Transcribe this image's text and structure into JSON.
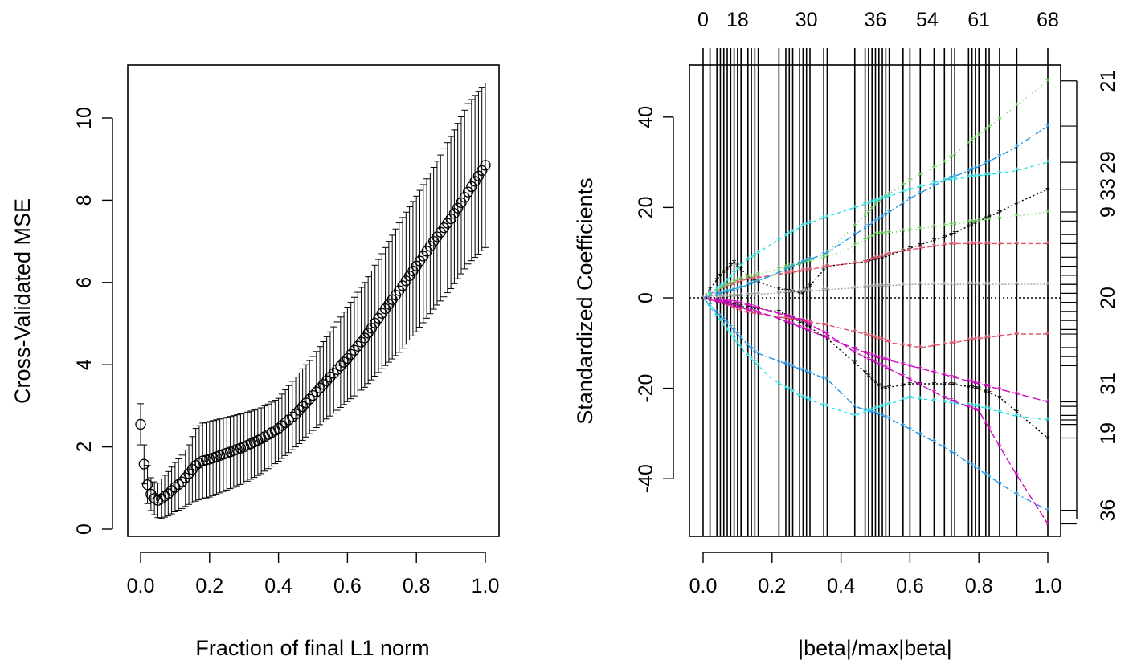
{
  "chart_data": [
    {
      "type": "line",
      "xlabel": "Fraction of final L1 norm",
      "ylabel": "Cross-Validated MSE",
      "xlim": [
        0,
        1
      ],
      "ylim": [
        0,
        11
      ],
      "xticks": [
        "0.0",
        "0.2",
        "0.4",
        "0.6",
        "0.8",
        "1.0"
      ],
      "yticks": [
        "0",
        "2",
        "4",
        "6",
        "8",
        "10"
      ],
      "marker": "open-circle",
      "error_bars": true,
      "series": [
        {
          "x": [
            0.0,
            0.01,
            0.02,
            0.03,
            0.04,
            0.05,
            0.06,
            0.08,
            0.1,
            0.12,
            0.14,
            0.16,
            0.18,
            0.2,
            0.25,
            0.3,
            0.35,
            0.4,
            0.45,
            0.5,
            0.55,
            0.6,
            0.65,
            0.7,
            0.75,
            0.8,
            0.85,
            0.9,
            0.95,
            1.0
          ],
          "y": [
            2.55,
            1.58,
            1.08,
            0.85,
            0.75,
            0.7,
            0.74,
            0.86,
            1.02,
            1.15,
            1.35,
            1.55,
            1.66,
            1.7,
            1.85,
            2.0,
            2.2,
            2.45,
            2.8,
            3.25,
            3.7,
            4.15,
            4.65,
            5.25,
            5.8,
            6.4,
            7.0,
            7.55,
            8.2,
            8.85
          ],
          "upper": [
            3.05,
            2.05,
            1.55,
            1.25,
            1.15,
            1.12,
            1.22,
            1.4,
            1.62,
            1.8,
            2.05,
            2.45,
            2.58,
            2.62,
            2.72,
            2.82,
            2.95,
            3.18,
            3.7,
            4.2,
            4.8,
            5.4,
            6.0,
            6.7,
            7.45,
            8.1,
            8.8,
            9.55,
            10.35,
            10.85
          ],
          "lower": [
            2.05,
            1.1,
            0.62,
            0.45,
            0.35,
            0.28,
            0.26,
            0.32,
            0.42,
            0.5,
            0.6,
            0.68,
            0.74,
            0.78,
            0.95,
            1.12,
            1.35,
            1.65,
            2.0,
            2.4,
            2.75,
            3.1,
            3.45,
            3.9,
            4.3,
            4.8,
            5.35,
            5.85,
            6.45,
            6.85
          ]
        }
      ]
    },
    {
      "type": "line",
      "xlabel": "|beta|/max|beta|",
      "ylabel": "Standardized Coefficients",
      "xlim": [
        0,
        1
      ],
      "ylim": [
        -52,
        52
      ],
      "xticks": [
        "0.0",
        "0.2",
        "0.4",
        "0.6",
        "0.8",
        "1.0"
      ],
      "yticks": [
        "-40",
        "-20",
        "0",
        "20",
        "40"
      ],
      "top_axis": {
        "values": [
          0,
          0.1,
          0.3,
          0.5,
          0.65,
          0.8,
          1.0
        ],
        "labels": [
          "0",
          "18",
          "30",
          "36",
          "54",
          "61",
          "68"
        ]
      },
      "right_axis": {
        "values": [
          48,
          38,
          30,
          24,
          19,
          8,
          0,
          -9,
          -19,
          -30,
          -47
        ],
        "labels": [
          "21",
          "",
          "29",
          "33",
          "9",
          "",
          "20",
          "",
          "31",
          "19",
          "36"
        ],
        "shown_labels": [
          "21",
          "29",
          "33",
          "9",
          "20",
          "31",
          "19",
          "36"
        ]
      },
      "step_lines_x": [
        0.0,
        0.02,
        0.04,
        0.05,
        0.06,
        0.07,
        0.08,
        0.09,
        0.1,
        0.11,
        0.13,
        0.14,
        0.15,
        0.16,
        0.22,
        0.24,
        0.25,
        0.26,
        0.28,
        0.29,
        0.3,
        0.31,
        0.35,
        0.36,
        0.44,
        0.47,
        0.48,
        0.49,
        0.5,
        0.51,
        0.52,
        0.53,
        0.54,
        0.58,
        0.6,
        0.63,
        0.67,
        0.7,
        0.72,
        0.73,
        0.77,
        0.78,
        0.79,
        0.8,
        0.82,
        0.83,
        0.86,
        0.91,
        1.0
      ],
      "zero_line": true,
      "series": [
        {
          "name": "",
          "color": "#000000",
          "x": [
            0,
            0.05,
            0.09,
            0.14,
            0.22,
            0.29,
            0.36,
            0.47,
            0.52,
            0.6,
            0.72,
            0.8,
            0.86,
            0.91,
            1.0
          ],
          "y": [
            0,
            5,
            8,
            4,
            2,
            1,
            7,
            8,
            9,
            11,
            14,
            17,
            19,
            21,
            24
          ]
        },
        {
          "name": "",
          "color": "#000000",
          "x": [
            0,
            0.05,
            0.12,
            0.22,
            0.3,
            0.36,
            0.45,
            0.52,
            0.6,
            0.72,
            0.8,
            0.86,
            1.0
          ],
          "y": [
            0,
            -1,
            -2,
            -3,
            -6,
            -9,
            -15,
            -20,
            -19,
            -19,
            -20,
            -22,
            -31
          ]
        },
        {
          "name": "",
          "color": "#df536b",
          "x": [
            0,
            0.05,
            0.12,
            0.2,
            0.29,
            0.36,
            0.47,
            0.55,
            0.63,
            0.72,
            0.8,
            0.9,
            1.0
          ],
          "y": [
            0,
            2,
            4,
            5,
            6,
            7,
            8,
            10,
            11,
            12,
            12,
            12,
            12
          ]
        },
        {
          "name": "",
          "color": "#df536b",
          "x": [
            0,
            0.05,
            0.12,
            0.2,
            0.29,
            0.36,
            0.47,
            0.55,
            0.63,
            0.72,
            0.8,
            0.9,
            1.0
          ],
          "y": [
            0,
            -1,
            -3,
            -4,
            -5,
            -6,
            -8,
            -10,
            -11,
            -10,
            -9,
            -8,
            -8
          ]
        },
        {
          "name": "",
          "color": "#61d04f",
          "x": [
            0,
            0.1,
            0.2,
            0.3,
            0.36,
            0.44,
            0.52,
            0.6,
            0.7,
            0.8,
            0.9,
            1.0
          ],
          "y": [
            0,
            4,
            6,
            8,
            10,
            16,
            22,
            26,
            30,
            36,
            42,
            48
          ]
        },
        {
          "name": "",
          "color": "#61d04f",
          "x": [
            0,
            0.1,
            0.2,
            0.3,
            0.4,
            0.5,
            0.6,
            0.7,
            0.8,
            0.9,
            1.0
          ],
          "y": [
            0,
            2,
            5,
            8,
            10,
            14,
            15,
            16,
            17,
            18,
            19
          ]
        },
        {
          "name": "",
          "color": "#2297e6",
          "x": [
            0,
            0.05,
            0.1,
            0.15,
            0.22,
            0.29,
            0.36,
            0.44,
            0.52,
            0.6,
            0.7,
            0.8,
            0.9,
            1.0
          ],
          "y": [
            0,
            -4,
            -8,
            -12,
            -14,
            -16,
            -18,
            -24,
            -26,
            -29,
            -33,
            -38,
            -43,
            -47
          ]
        },
        {
          "name": "",
          "color": "#2297e6",
          "x": [
            0,
            0.1,
            0.2,
            0.29,
            0.36,
            0.44,
            0.52,
            0.6,
            0.7,
            0.8,
            0.9,
            1.0
          ],
          "y": [
            0,
            2,
            5,
            8,
            10,
            14,
            18,
            22,
            26,
            29,
            33,
            38
          ]
        },
        {
          "name": "",
          "color": "#28e2e5",
          "x": [
            0,
            0.06,
            0.12,
            0.2,
            0.29,
            0.36,
            0.44,
            0.52,
            0.6,
            0.7,
            0.8,
            0.9,
            1.0
          ],
          "y": [
            0,
            -6,
            -12,
            -18,
            -22,
            -24,
            -26,
            -24,
            -22,
            -23,
            -24,
            -26,
            -27
          ]
        },
        {
          "name": "",
          "color": "#28e2e5",
          "x": [
            0,
            0.06,
            0.12,
            0.2,
            0.29,
            0.36,
            0.44,
            0.52,
            0.6,
            0.7,
            0.8,
            0.9,
            1.0
          ],
          "y": [
            0,
            3,
            8,
            12,
            16,
            18,
            20,
            22,
            24,
            26,
            27,
            28,
            30
          ]
        },
        {
          "name": "",
          "color": "#cd0bbc",
          "x": [
            0,
            0.1,
            0.2,
            0.29,
            0.36,
            0.44,
            0.52,
            0.6,
            0.7,
            0.8,
            0.9,
            1.0
          ],
          "y": [
            0,
            -1,
            -3,
            -5,
            -8,
            -12,
            -15,
            -18,
            -22,
            -25,
            -38,
            -50
          ]
        },
        {
          "name": "",
          "color": "#cd0bbc",
          "x": [
            0,
            0.1,
            0.2,
            0.3,
            0.4,
            0.5,
            0.6,
            0.7,
            0.8,
            0.9,
            1.0
          ],
          "y": [
            0,
            -2,
            -4,
            -7,
            -10,
            -13,
            -15,
            -17,
            -19,
            -21,
            -23
          ]
        },
        {
          "name": "",
          "color": "#9e9e9e",
          "x": [
            0,
            0.2,
            0.4,
            0.6,
            0.8,
            1.0
          ],
          "y": [
            0,
            1,
            2,
            3,
            3,
            3
          ]
        }
      ]
    }
  ]
}
